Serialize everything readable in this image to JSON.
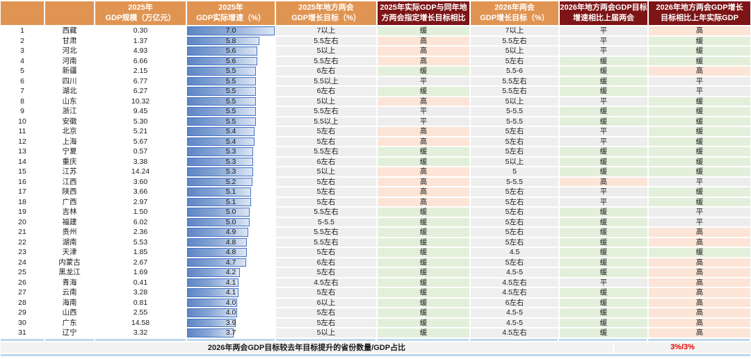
{
  "colors": {
    "header_orange": "#E09452",
    "header_maroon": "#7D1517",
    "bar_border": "#4472C4",
    "bar_fill_start": "#5E86C4",
    "bar_fill_end": "#DCE6F4",
    "status_high_bg": "#FCE4D6",
    "status_slow_bg": "#E2EFDA",
    "status_flat_bg": "#EDEDED",
    "target_col_bg": "#EFEFEF",
    "divider_blue": "#BDD7EE",
    "footer_bg": "#F2F2F2",
    "footer_value_red": "#E00000"
  },
  "chart_data": {
    "type": "table",
    "title": "",
    "bar_axis": {
      "min": 0,
      "max": 7.0,
      "column": "2025年GDP实际增速（%）"
    },
    "status_classes": {
      "高": "hi",
      "缓": "lo",
      "平": "mid"
    },
    "header": [
      {
        "lines": [
          "",
          ""
        ],
        "theme": "orange"
      },
      {
        "lines": [
          "",
          ""
        ],
        "theme": "orange"
      },
      {
        "lines": [
          "2025年",
          "GDP规模（万亿元）"
        ],
        "theme": "orange"
      },
      {
        "lines": [
          "2025年",
          "GDP实际增速（%）"
        ],
        "theme": "orange"
      },
      {
        "lines": [
          "2025年地方两会",
          "GDP增长目标（%）"
        ],
        "theme": "orange"
      },
      {
        "lines": [
          "2025年实际GDP与同年地",
          "方两会指定增长目标相比"
        ],
        "theme": "maroon"
      },
      {
        "lines": [
          "2026年两会",
          "GDP增长目标（%）"
        ],
        "theme": "orange"
      },
      {
        "lines": [
          "2026年地方两会GDP目标",
          "增速相比上届两会"
        ],
        "theme": "maroon"
      },
      {
        "lines": [
          "2026年地方两会GDP增长",
          "目标相比上年实际GDP"
        ],
        "theme": "maroon"
      }
    ],
    "rows": [
      {
        "rank": "1",
        "province": "西藏",
        "gdp_scale": "0.30",
        "growth": "7.0",
        "target_2025": "7以上",
        "vs_target_2025": "缓",
        "target_2026": "7以上",
        "vs_prev_congress": "平",
        "vs_actual_gdp": "高"
      },
      {
        "rank": "2",
        "province": "甘肃",
        "gdp_scale": "1.37",
        "growth": "5.8",
        "target_2025": "5.5左右",
        "vs_target_2025": "高",
        "target_2026": "5.5左右",
        "vs_prev_congress": "平",
        "vs_actual_gdp": "缓"
      },
      {
        "rank": "3",
        "province": "河北",
        "gdp_scale": "4.93",
        "growth": "5.6",
        "target_2025": "5以上",
        "vs_target_2025": "高",
        "target_2026": "5以上",
        "vs_prev_congress": "平",
        "vs_actual_gdp": "缓"
      },
      {
        "rank": "4",
        "province": "河南",
        "gdp_scale": "6.66",
        "growth": "5.6",
        "target_2025": "5.5左右",
        "vs_target_2025": "高",
        "target_2026": "5左右",
        "vs_prev_congress": "缓",
        "vs_actual_gdp": "缓"
      },
      {
        "rank": "5",
        "province": "新疆",
        "gdp_scale": "2.15",
        "growth": "5.5",
        "target_2025": "6左右",
        "vs_target_2025": "缓",
        "target_2026": "5.5-6",
        "vs_prev_congress": "缓",
        "vs_actual_gdp": "高"
      },
      {
        "rank": "6",
        "province": "四川",
        "gdp_scale": "6.77",
        "growth": "5.5",
        "target_2025": "5.5以上",
        "vs_target_2025": "平",
        "target_2026": "5.5左右",
        "vs_prev_congress": "缓",
        "vs_actual_gdp": "平"
      },
      {
        "rank": "7",
        "province": "湖北",
        "gdp_scale": "6.27",
        "growth": "5.5",
        "target_2025": "6左右",
        "vs_target_2025": "缓",
        "target_2026": "5.5左右",
        "vs_prev_congress": "缓",
        "vs_actual_gdp": "平"
      },
      {
        "rank": "8",
        "province": "山东",
        "gdp_scale": "10.32",
        "growth": "5.5",
        "target_2025": "5以上",
        "vs_target_2025": "高",
        "target_2026": "5以上",
        "vs_prev_congress": "平",
        "vs_actual_gdp": "缓"
      },
      {
        "rank": "9",
        "province": "浙江",
        "gdp_scale": "9.45",
        "growth": "5.5",
        "target_2025": "5.5左右",
        "vs_target_2025": "平",
        "target_2026": "5-5.5",
        "vs_prev_congress": "缓",
        "vs_actual_gdp": "缓"
      },
      {
        "rank": "10",
        "province": "安徽",
        "gdp_scale": "5.30",
        "growth": "5.5",
        "target_2025": "5.5以上",
        "vs_target_2025": "平",
        "target_2026": "5-5.5",
        "vs_prev_congress": "缓",
        "vs_actual_gdp": "缓"
      },
      {
        "rank": "11",
        "province": "北京",
        "gdp_scale": "5.21",
        "growth": "5.4",
        "target_2025": "5左右",
        "vs_target_2025": "高",
        "target_2026": "5左右",
        "vs_prev_congress": "平",
        "vs_actual_gdp": "缓"
      },
      {
        "rank": "12",
        "province": "上海",
        "gdp_scale": "5.67",
        "growth": "5.4",
        "target_2025": "5左右",
        "vs_target_2025": "高",
        "target_2026": "5左右",
        "vs_prev_congress": "平",
        "vs_actual_gdp": "缓"
      },
      {
        "rank": "13",
        "province": "宁夏",
        "gdp_scale": "0.57",
        "growth": "5.3",
        "target_2025": "5.5左右",
        "vs_target_2025": "缓",
        "target_2026": "5左右",
        "vs_prev_congress": "缓",
        "vs_actual_gdp": "缓"
      },
      {
        "rank": "14",
        "province": "重庆",
        "gdp_scale": "3.38",
        "growth": "5.3",
        "target_2025": "6左右",
        "vs_target_2025": "缓",
        "target_2026": "5以上",
        "vs_prev_congress": "缓",
        "vs_actual_gdp": "缓"
      },
      {
        "rank": "15",
        "province": "江苏",
        "gdp_scale": "14.24",
        "growth": "5.3",
        "target_2025": "5以上",
        "vs_target_2025": "高",
        "target_2026": "5",
        "vs_prev_congress": "缓",
        "vs_actual_gdp": "缓"
      },
      {
        "rank": "16",
        "province": "江西",
        "gdp_scale": "3.60",
        "growth": "5.2",
        "target_2025": "5左右",
        "vs_target_2025": "高",
        "target_2026": "5-5.5",
        "vs_prev_congress": "高",
        "vs_actual_gdp": "平"
      },
      {
        "rank": "17",
        "province": "陕西",
        "gdp_scale": "3.66",
        "growth": "5.1",
        "target_2025": "5左右",
        "vs_target_2025": "高",
        "target_2026": "5左右",
        "vs_prev_congress": "平",
        "vs_actual_gdp": "缓"
      },
      {
        "rank": "18",
        "province": "广西",
        "gdp_scale": "2.97",
        "growth": "5.1",
        "target_2025": "5左右",
        "vs_target_2025": "高",
        "target_2026": "5左右",
        "vs_prev_congress": "平",
        "vs_actual_gdp": "缓"
      },
      {
        "rank": "19",
        "province": "吉林",
        "gdp_scale": "1.50",
        "growth": "5.0",
        "target_2025": "5.5左右",
        "vs_target_2025": "缓",
        "target_2026": "5左右",
        "vs_prev_congress": "缓",
        "vs_actual_gdp": "平"
      },
      {
        "rank": "20",
        "province": "福建",
        "gdp_scale": "6.02",
        "growth": "5.0",
        "target_2025": "5-5.5",
        "vs_target_2025": "缓",
        "target_2026": "5左右",
        "vs_prev_congress": "缓",
        "vs_actual_gdp": "平"
      },
      {
        "rank": "21",
        "province": "贵州",
        "gdp_scale": "2.36",
        "growth": "4.9",
        "target_2025": "5.5左右",
        "vs_target_2025": "缓",
        "target_2026": "5左右",
        "vs_prev_congress": "缓",
        "vs_actual_gdp": "高"
      },
      {
        "rank": "22",
        "province": "湖南",
        "gdp_scale": "5.53",
        "growth": "4.8",
        "target_2025": "5.5左右",
        "vs_target_2025": "缓",
        "target_2026": "5左右",
        "vs_prev_congress": "缓",
        "vs_actual_gdp": "高"
      },
      {
        "rank": "23",
        "province": "天津",
        "gdp_scale": "1.85",
        "growth": "4.8",
        "target_2025": "5左右",
        "vs_target_2025": "缓",
        "target_2026": "4.5",
        "vs_prev_congress": "缓",
        "vs_actual_gdp": "缓"
      },
      {
        "rank": "24",
        "province": "内蒙古",
        "gdp_scale": "2.67",
        "growth": "4.7",
        "target_2025": "6左右",
        "vs_target_2025": "缓",
        "target_2026": "5左右",
        "vs_prev_congress": "缓",
        "vs_actual_gdp": "高"
      },
      {
        "rank": "25",
        "province": "黑龙江",
        "gdp_scale": "1.69",
        "growth": "4.2",
        "target_2025": "5左右",
        "vs_target_2025": "缓",
        "target_2026": "4.5-5",
        "vs_prev_congress": "缓",
        "vs_actual_gdp": "高"
      },
      {
        "rank": "26",
        "province": "青海",
        "gdp_scale": "0.41",
        "growth": "4.1",
        "target_2025": "4.5左右",
        "vs_target_2025": "缓",
        "target_2026": "4.5左右",
        "vs_prev_congress": "平",
        "vs_actual_gdp": "高"
      },
      {
        "rank": "27",
        "province": "云南",
        "gdp_scale": "3.28",
        "growth": "4.1",
        "target_2025": "5左右",
        "vs_target_2025": "缓",
        "target_2026": "4.5左右",
        "vs_prev_congress": "缓",
        "vs_actual_gdp": "高"
      },
      {
        "rank": "28",
        "province": "海南",
        "gdp_scale": "0.81",
        "growth": "4.0",
        "target_2025": "6以上",
        "vs_target_2025": "缓",
        "target_2026": "6左右",
        "vs_prev_congress": "缓",
        "vs_actual_gdp": "高"
      },
      {
        "rank": "29",
        "province": "山西",
        "gdp_scale": "2.55",
        "growth": "4.0",
        "target_2025": "5左右",
        "vs_target_2025": "缓",
        "target_2026": "4.5-5",
        "vs_prev_congress": "缓",
        "vs_actual_gdp": "高"
      },
      {
        "rank": "30",
        "province": "广东",
        "gdp_scale": "14.58",
        "growth": "3.9",
        "target_2025": "5左右",
        "vs_target_2025": "缓",
        "target_2026": "4.5-5",
        "vs_prev_congress": "缓",
        "vs_actual_gdp": "高"
      },
      {
        "rank": "31",
        "province": "辽宁",
        "gdp_scale": "3.32",
        "growth": "3.7",
        "target_2025": "5以上",
        "vs_target_2025": "缓",
        "target_2026": "4.5左右",
        "vs_prev_congress": "缓",
        "vs_actual_gdp": "高"
      }
    ],
    "footer": {
      "label": "2026年两会GDP目标较去年目标提升的省份数量/GDP占比",
      "value": "3%/3%"
    }
  }
}
